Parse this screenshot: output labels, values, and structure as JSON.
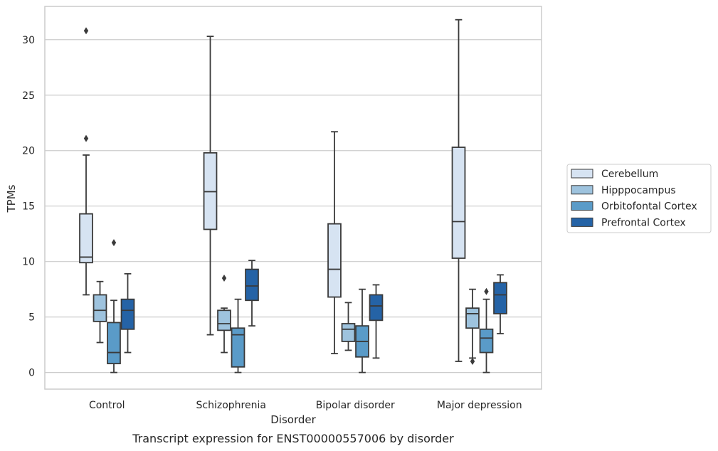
{
  "caption": "Transcript expression for ENST00000557006 by disorder",
  "chart_data": {
    "type": "box",
    "title": "",
    "xlabel": "Disorder",
    "ylabel": "TPMs",
    "ylim": [
      -1.5,
      33
    ],
    "yticks": [
      0,
      5,
      10,
      15,
      20,
      25,
      30
    ],
    "grid": "horizontal",
    "legend_position": "right",
    "categories": [
      "Control",
      "Schizophrenia",
      "Bipolar disorder",
      "Major depression"
    ],
    "series": [
      {
        "name": "Cerebellum",
        "color": "#d6e3f2",
        "boxes": [
          {
            "whisker_low": 7.0,
            "q1": 9.9,
            "median": 10.4,
            "q3": 14.3,
            "whisker_high": 19.6,
            "outliers": [
              21.1,
              30.8
            ]
          },
          {
            "whisker_low": 3.4,
            "q1": 12.9,
            "median": 16.3,
            "q3": 19.8,
            "whisker_high": 30.3,
            "outliers": []
          },
          {
            "whisker_low": 1.7,
            "q1": 6.8,
            "median": 9.3,
            "q3": 13.4,
            "whisker_high": 21.7,
            "outliers": []
          },
          {
            "whisker_low": 1.0,
            "q1": 10.3,
            "median": 13.6,
            "q3": 20.3,
            "whisker_high": 31.8,
            "outliers": []
          }
        ]
      },
      {
        "name": "Hipppocampus",
        "color": "#9ec3de",
        "boxes": [
          {
            "whisker_low": 2.7,
            "q1": 4.6,
            "median": 5.6,
            "q3": 7.0,
            "whisker_high": 8.2,
            "outliers": []
          },
          {
            "whisker_low": 1.8,
            "q1": 3.8,
            "median": 4.4,
            "q3": 5.6,
            "whisker_high": 5.8,
            "outliers": [
              8.5
            ]
          },
          {
            "whisker_low": 2.0,
            "q1": 2.8,
            "median": 3.9,
            "q3": 4.4,
            "whisker_high": 6.3,
            "outliers": []
          },
          {
            "whisker_low": 1.3,
            "q1": 4.0,
            "median": 5.3,
            "q3": 5.8,
            "whisker_high": 7.5,
            "outliers": [
              1.0
            ]
          }
        ]
      },
      {
        "name": "Orbitofontal Cortex",
        "color": "#5a9bc8",
        "boxes": [
          {
            "whisker_low": 0.0,
            "q1": 0.8,
            "median": 1.8,
            "q3": 4.5,
            "whisker_high": 6.5,
            "outliers": [
              11.7
            ]
          },
          {
            "whisker_low": 0.0,
            "q1": 0.5,
            "median": 3.4,
            "q3": 4.0,
            "whisker_high": 6.6,
            "outliers": []
          },
          {
            "whisker_low": 0.0,
            "q1": 1.4,
            "median": 2.8,
            "q3": 4.2,
            "whisker_high": 7.5,
            "outliers": []
          },
          {
            "whisker_low": 0.0,
            "q1": 1.8,
            "median": 3.1,
            "q3": 3.9,
            "whisker_high": 6.6,
            "outliers": [
              7.3
            ]
          }
        ]
      },
      {
        "name": "Prefrontal Cortex",
        "color": "#2563a6",
        "boxes": [
          {
            "whisker_low": 1.8,
            "q1": 3.9,
            "median": 5.6,
            "q3": 6.6,
            "whisker_high": 8.9,
            "outliers": []
          },
          {
            "whisker_low": 4.2,
            "q1": 6.5,
            "median": 7.8,
            "q3": 9.3,
            "whisker_high": 10.1,
            "outliers": []
          },
          {
            "whisker_low": 1.3,
            "q1": 4.7,
            "median": 6.0,
            "q3": 7.0,
            "whisker_high": 7.9,
            "outliers": []
          },
          {
            "whisker_low": 3.5,
            "q1": 5.3,
            "median": 7.0,
            "q3": 8.1,
            "whisker_high": 8.8,
            "outliers": []
          }
        ]
      }
    ]
  }
}
